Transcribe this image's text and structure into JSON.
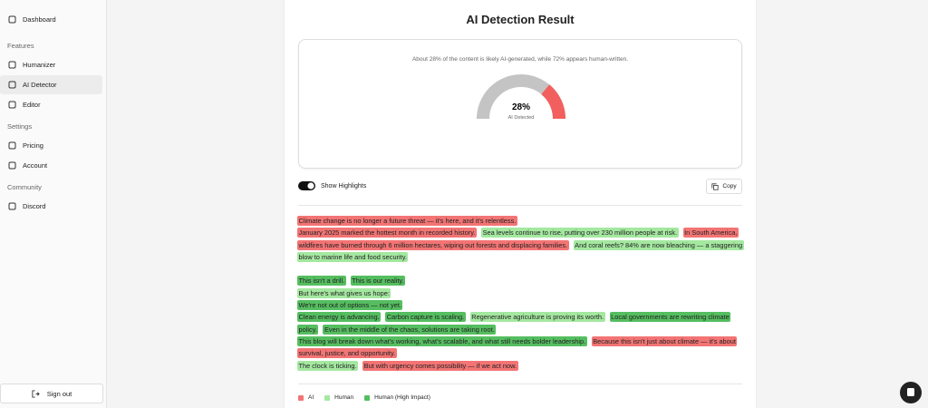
{
  "sidebar": {
    "top": "Dashboard",
    "sections": [
      {
        "label": "Features",
        "items": [
          "Humanizer",
          "AI Detector",
          "Editor"
        ]
      },
      {
        "label": "Settings",
        "items": [
          "Pricing",
          "Account"
        ]
      },
      {
        "label": "Community",
        "items": [
          "Discord"
        ]
      }
    ],
    "active": "AI Detector",
    "sign_out": "Sign out"
  },
  "result": {
    "title": "AI Detection Result",
    "summary": "About 28% of the content is likely AI-generated, while 72% appears human-written.",
    "gauge": {
      "value": 28,
      "label": "28%",
      "caption": "AI Detected",
      "color": "#f25f5f",
      "track_color": "#c4c4c4"
    },
    "toggle": "Show Highlights",
    "copy": "Copy",
    "paragraphs": [
      [
        [
          {
            "text": "Climate change is no longer a future threat — it's here, and it's relentless.",
            "color": "#f37474"
          }
        ],
        [
          {
            "text": "January 2025 marked the hottest month in recorded history.",
            "color": "#f37474"
          },
          {
            "text": "Sea levels continue to rise, putting over 230 million people at risk.",
            "color": "#a4e8a0"
          },
          {
            "text": "In South America, wildfires have burned through 6 million hectares, wiping out forests and displacing families.",
            "color": "#f37474"
          },
          {
            "text": "And coral reefs? 84% are now bleaching — a staggering blow to marine life and food security.",
            "color": "#a4e8a0"
          }
        ]
      ],
      [
        [
          {
            "text": "This isn't a drill.",
            "color": "#55be60"
          },
          {
            "text": "This is our reality.",
            "color": "#55be60"
          }
        ],
        [
          {
            "text": "But here's what gives us hope:",
            "color": "#a4e8a0"
          }
        ],
        [
          {
            "text": "We're not out of options — not yet.",
            "color": "#55be60"
          }
        ],
        [
          {
            "text": "Clean energy is advancing.",
            "color": "#55be60"
          },
          {
            "text": "Carbon capture is scaling.",
            "color": "#55be60"
          },
          {
            "text": "Regenerative agriculture is proving its worth.",
            "color": "#a4e8a0"
          },
          {
            "text": "Local governments are rewriting climate policy.",
            "color": "#55be60"
          },
          {
            "text": "Even in the middle of the chaos, solutions are taking root.",
            "color": "#55be60"
          }
        ],
        [
          {
            "text": "This blog will break down what's working, what's scalable, and what still needs bolder leadership.",
            "color": "#55be60"
          },
          {
            "text": "Because this isn't just about climate — it's about survival, justice, and opportunity.",
            "color": "#f37474"
          }
        ],
        [
          {
            "text": "The clock is ticking.",
            "color": "#a4e8a0"
          },
          {
            "text": "But with urgency comes possibility — if we act now.",
            "color": "#f37474"
          }
        ]
      ]
    ],
    "legend": [
      {
        "label": "AI",
        "color": "#f37474"
      },
      {
        "label": "Human",
        "color": "#a4e8a0"
      },
      {
        "label": "Human (High Impact)",
        "color": "#55be60"
      }
    ]
  }
}
